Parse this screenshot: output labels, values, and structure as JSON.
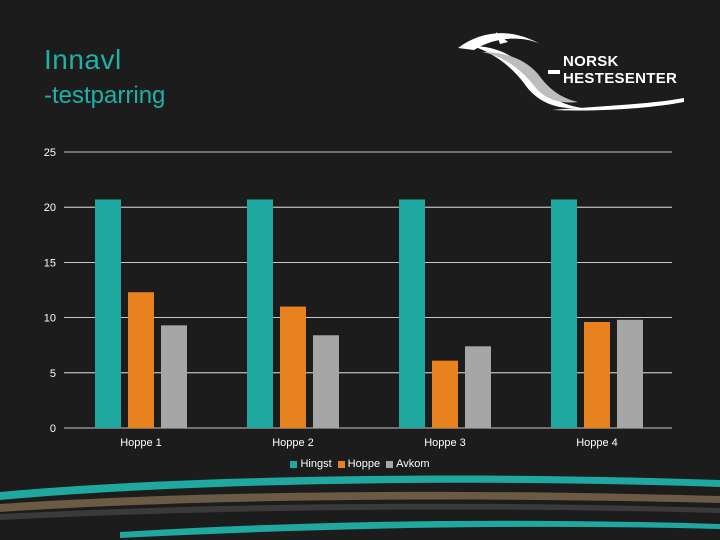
{
  "slide": {
    "title": "Innavl",
    "subtitle": "-testparring"
  },
  "logo": {
    "text": "NORSK HESTESENTER"
  },
  "chart_data": {
    "type": "bar",
    "categories": [
      "Hoppe 1",
      "Hoppe 2",
      "Hoppe 3",
      "Hoppe 4"
    ],
    "series": [
      {
        "name": "Hingst",
        "values": [
          20.7,
          20.7,
          20.7,
          20.7
        ],
        "color": "#1fa89f"
      },
      {
        "name": "Hoppe",
        "values": [
          12.3,
          11.0,
          6.1,
          9.6
        ],
        "color": "#e8821e"
      },
      {
        "name": "Avkom",
        "values": [
          9.3,
          8.4,
          7.4,
          9.8
        ],
        "color": "#a6a6a6"
      }
    ],
    "yticks": [
      0,
      5,
      10,
      15,
      20,
      25
    ],
    "ylim": [
      0,
      25
    ],
    "grid": true,
    "legend_position": "bottom"
  }
}
